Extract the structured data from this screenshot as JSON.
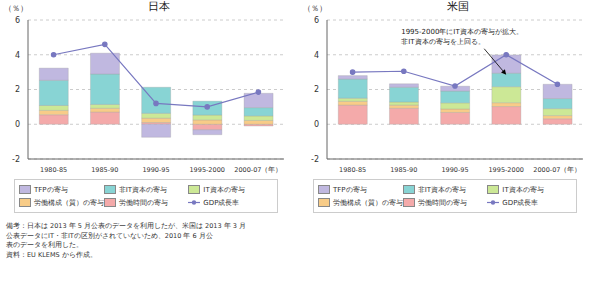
{
  "chart_data": [
    {
      "type": "bar",
      "title": "日本",
      "stacked": true,
      "grid": true,
      "legend": "bottom",
      "ylabel": "（％）",
      "categories": [
        "1980-85",
        "1985-90",
        "1990-95",
        "1995-2000",
        "2000-07（年）"
      ],
      "series": [
        {
          "name": "労働時間の寄与",
          "type": "bar",
          "color": "#f4aaaa",
          "values": [
            0.55,
            0.7,
            0.1,
            -0.32,
            -0.1
          ]
        },
        {
          "name": "労働構成（質）の寄与",
          "type": "bar",
          "color": "#f8cc88",
          "values": [
            0.25,
            0.22,
            0.25,
            0.25,
            0.22
          ]
        },
        {
          "name": "IT資本の寄与",
          "type": "bar",
          "color": "#cce896",
          "values": [
            0.28,
            0.22,
            0.28,
            0.28,
            0.26
          ]
        },
        {
          "name": "非IT資本の寄与",
          "type": "bar",
          "color": "#88d4d4",
          "values": [
            1.45,
            1.75,
            1.5,
            0.8,
            0.48
          ]
        },
        {
          "name": "TFPの寄与",
          "type": "bar",
          "color": "#c0b8e0",
          "values": [
            0.7,
            1.2,
            -0.75,
            -0.28,
            0.82
          ]
        },
        {
          "name": "GDP成長率",
          "type": "line",
          "color": "#7878c0",
          "marker": "circle",
          "line_style": "solid",
          "values": [
            4.0,
            4.6,
            1.2,
            1.0,
            1.85
          ]
        }
      ],
      "ylim": [
        -2,
        6
      ],
      "yticks": [
        -2,
        0,
        2,
        4,
        6
      ],
      "footnote": [
        "備考：日本は 2013 年 5 月公表のデータを利用したが、米国は 2013 年 3 月",
        "公表データにIT・非ITの区別がされていないため、2010 年 6 月公",
        "表のデータを利用した。",
        "資料：EU KLEMS から作成。"
      ]
    },
    {
      "type": "bar",
      "title": "米国",
      "stacked": true,
      "grid": true,
      "legend": "bottom",
      "ylabel": "（％）",
      "categories": [
        "1980-85",
        "1985-90",
        "1990-95",
        "1995-2000",
        "2000-07（年）"
      ],
      "series": [
        {
          "name": "労働時間の寄与",
          "type": "bar",
          "color": "#f4aaaa",
          "values": [
            1.1,
            0.92,
            0.68,
            1.02,
            0.32
          ]
        },
        {
          "name": "労働構成（質）の寄与",
          "type": "bar",
          "color": "#f8cc88",
          "values": [
            0.22,
            0.18,
            0.2,
            0.22,
            0.18
          ]
        },
        {
          "name": "IT資本の寄与",
          "type": "bar",
          "color": "#cce896",
          "values": [
            0.18,
            0.18,
            0.35,
            0.92,
            0.4
          ]
        },
        {
          "name": "非IT資本の寄与",
          "type": "bar",
          "color": "#88d4d4",
          "values": [
            1.1,
            0.85,
            0.68,
            0.78,
            0.58
          ]
        },
        {
          "name": "TFPの寄与",
          "type": "bar",
          "color": "#c0b8e0",
          "values": [
            0.2,
            0.2,
            0.28,
            1.05,
            0.82
          ]
        },
        {
          "name": "GDP成長率",
          "type": "line",
          "color": "#7878c0",
          "marker": "circle",
          "line_style": "solid",
          "values": [
            3.0,
            3.05,
            2.2,
            4.0,
            2.3
          ]
        }
      ],
      "ylim": [
        -2,
        6
      ],
      "yticks": [
        -2,
        0,
        2,
        4,
        6
      ],
      "annotations": [
        {
          "text": "1995-2000年にIT資本の寄与が拡大。\n非IT資本の寄与を上回る。",
          "x": "1995-2000",
          "y": 2.85
        }
      ]
    }
  ]
}
